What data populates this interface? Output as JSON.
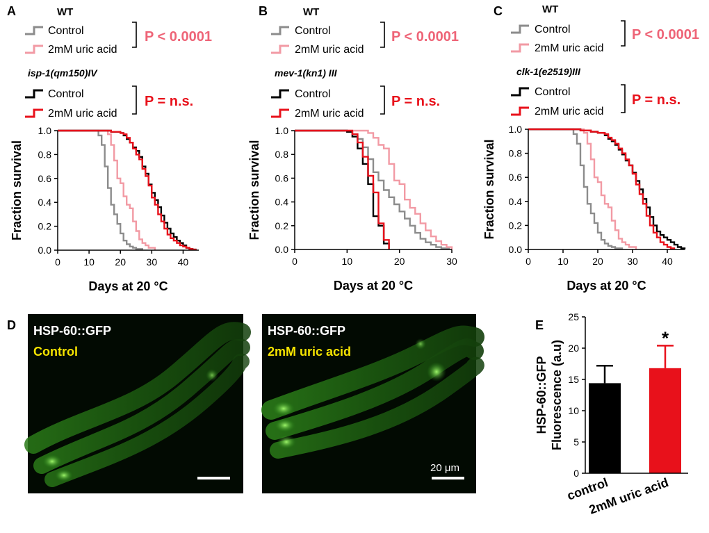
{
  "figure_panels": {
    "A": "A",
    "B": "B",
    "C": "C",
    "D": "D",
    "E": "E"
  },
  "colors": {
    "wt_control": "#8c8c8c",
    "wt_uric": "#f29aa4",
    "mut_control": "#000000",
    "mut_uric": "#e8111b",
    "pval_wt": "#ee6477",
    "pval_mut": "#e8111b",
    "bar_control": "#000000",
    "bar_uric": "#e8111b",
    "micro_label_white": "#ffffff",
    "micro_label_yellow": "#f5e300"
  },
  "chart_data": [
    {
      "id": "A",
      "type": "line",
      "wt_title": "WT",
      "strain": "isp-1(qm150)IV",
      "legend_wt": [
        "Control",
        "2mM uric acid"
      ],
      "legend_mut": [
        "Control",
        "2mM uric acid"
      ],
      "p_wt": "P < 0.0001",
      "p_mut": "P = n.s.",
      "xlabel": "Days at 20 °C",
      "ylabel": "Fraction survival",
      "xlim": [
        0,
        45
      ],
      "ylim": [
        0,
        1.0
      ],
      "xticks": [
        "0",
        "10",
        "20",
        "30",
        "40"
      ],
      "xtick_values": [
        0,
        10,
        20,
        30,
        40
      ],
      "yticks": [
        "0.0",
        "0.2",
        "0.4",
        "0.6",
        "0.8",
        "1.0"
      ],
      "ytick_values": [
        0,
        0.2,
        0.4,
        0.6,
        0.8,
        1.0
      ],
      "series": [
        {
          "name": "WT Control",
          "color": "#8c8c8c",
          "x": [
            0,
            13,
            14,
            15,
            16,
            17,
            18,
            19,
            20,
            21,
            22,
            23,
            24,
            25,
            27
          ],
          "y": [
            1.0,
            0.96,
            0.88,
            0.7,
            0.52,
            0.38,
            0.3,
            0.22,
            0.14,
            0.08,
            0.05,
            0.03,
            0.02,
            0.01,
            0.0
          ]
        },
        {
          "name": "WT 2mM uric acid",
          "color": "#f29aa4",
          "x": [
            0,
            16,
            17,
            18,
            19,
            20,
            21,
            22,
            23,
            24,
            25,
            26,
            27,
            28,
            29,
            31
          ],
          "y": [
            1.0,
            0.97,
            0.88,
            0.75,
            0.6,
            0.56,
            0.45,
            0.38,
            0.35,
            0.24,
            0.16,
            0.09,
            0.06,
            0.04,
            0.02,
            0.0
          ]
        },
        {
          "name": "isp-1 Control",
          "color": "#000000",
          "x": [
            0,
            17,
            20,
            21,
            22,
            23,
            24,
            25,
            26,
            27,
            28,
            29,
            30,
            31,
            32,
            33,
            34,
            35,
            36,
            37,
            38,
            39,
            40,
            41,
            42,
            43,
            44
          ],
          "y": [
            1.0,
            0.99,
            0.98,
            0.96,
            0.93,
            0.9,
            0.86,
            0.83,
            0.78,
            0.7,
            0.64,
            0.55,
            0.48,
            0.42,
            0.36,
            0.29,
            0.23,
            0.18,
            0.14,
            0.11,
            0.08,
            0.06,
            0.04,
            0.02,
            0.01,
            0.005,
            0.0
          ]
        },
        {
          "name": "isp-1 2mM uric acid",
          "color": "#e8111b",
          "x": [
            0,
            17,
            20,
            21,
            22,
            23,
            24,
            25,
            26,
            27,
            28,
            29,
            30,
            31,
            32,
            33,
            34,
            35,
            36,
            37,
            38,
            39,
            40,
            41,
            42,
            43,
            44
          ],
          "y": [
            1.0,
            0.99,
            0.98,
            0.97,
            0.94,
            0.9,
            0.85,
            0.8,
            0.76,
            0.68,
            0.62,
            0.54,
            0.44,
            0.38,
            0.3,
            0.24,
            0.18,
            0.13,
            0.1,
            0.08,
            0.06,
            0.04,
            0.03,
            0.02,
            0.01,
            0.005,
            0.0
          ]
        }
      ]
    },
    {
      "id": "B",
      "type": "line",
      "wt_title": "WT",
      "strain": "mev-1(kn1) III",
      "legend_wt": [
        "Control",
        "2mM uric acid"
      ],
      "legend_mut": [
        "Control",
        "2mM uric acid"
      ],
      "p_wt": "P < 0.0001",
      "p_mut": "P = n.s.",
      "xlabel": "Days at 20 °C",
      "ylabel": "Fraction survival",
      "xlim": [
        0,
        30
      ],
      "ylim": [
        0,
        1.0
      ],
      "xticks": [
        "0",
        "10",
        "20",
        "30"
      ],
      "xtick_values": [
        0,
        10,
        20,
        30
      ],
      "yticks": [
        "0.0",
        "0.2",
        "0.4",
        "0.6",
        "0.8",
        "1.0"
      ],
      "ytick_values": [
        0,
        0.2,
        0.4,
        0.6,
        0.8,
        1.0
      ],
      "series": [
        {
          "name": "WT Control",
          "color": "#8c8c8c",
          "x": [
            0,
            10,
            11,
            12,
            13,
            14,
            15,
            16,
            17,
            18,
            19,
            20,
            21,
            22,
            23,
            24,
            25,
            26,
            27,
            28,
            29.5
          ],
          "y": [
            1.0,
            0.99,
            0.97,
            0.93,
            0.86,
            0.76,
            0.65,
            0.58,
            0.5,
            0.44,
            0.38,
            0.32,
            0.26,
            0.2,
            0.14,
            0.09,
            0.06,
            0.04,
            0.02,
            0.01,
            0.0
          ]
        },
        {
          "name": "WT 2mM uric acid",
          "color": "#f29aa4",
          "x": [
            0,
            14,
            15,
            16,
            17,
            18,
            19,
            20,
            21,
            22,
            23,
            24,
            25,
            26,
            27,
            28,
            29,
            30
          ],
          "y": [
            1.0,
            0.98,
            0.94,
            0.88,
            0.85,
            0.72,
            0.58,
            0.55,
            0.42,
            0.35,
            0.3,
            0.22,
            0.16,
            0.11,
            0.07,
            0.04,
            0.02,
            0.0
          ]
        },
        {
          "name": "mev-1 Control",
          "color": "#000000",
          "x": [
            0,
            10,
            11,
            12,
            13,
            14,
            15,
            16,
            17,
            18
          ],
          "y": [
            1.0,
            0.99,
            0.95,
            0.85,
            0.72,
            0.55,
            0.28,
            0.2,
            0.05,
            0.0
          ]
        },
        {
          "name": "mev-1 2mM uric acid",
          "color": "#e8111b",
          "x": [
            0,
            11,
            12,
            13,
            14,
            15,
            16,
            17,
            18
          ],
          "y": [
            1.0,
            0.97,
            0.9,
            0.78,
            0.62,
            0.48,
            0.22,
            0.08,
            0.0
          ]
        }
      ]
    },
    {
      "id": "C",
      "type": "line",
      "wt_title": "WT",
      "strain": "clk-1(e2519)III",
      "legend_wt": [
        "Control",
        "2mM uric acid"
      ],
      "legend_mut": [
        "Control",
        "2mM uric acid"
      ],
      "p_wt": "P < 0.0001",
      "p_mut": "P = n.s.",
      "xlabel": "Days at 20 °C",
      "ylabel": "Fraction survival",
      "xlim": [
        0,
        45
      ],
      "ylim": [
        0,
        1.0
      ],
      "xticks": [
        "0",
        "10",
        "20",
        "30",
        "40"
      ],
      "xtick_values": [
        0,
        10,
        20,
        30,
        40
      ],
      "yticks": [
        "0.0",
        "0.2",
        "0.4",
        "0.6",
        "0.8",
        "1.0"
      ],
      "ytick_values": [
        0,
        0.2,
        0.4,
        0.6,
        0.8,
        1.0
      ],
      "series": [
        {
          "name": "WT Control",
          "color": "#8c8c8c",
          "x": [
            0,
            13,
            14,
            15,
            16,
            17,
            18,
            19,
            20,
            21,
            22,
            23,
            24,
            25,
            27
          ],
          "y": [
            1.0,
            0.96,
            0.88,
            0.7,
            0.52,
            0.38,
            0.3,
            0.22,
            0.14,
            0.08,
            0.05,
            0.03,
            0.02,
            0.01,
            0.0
          ]
        },
        {
          "name": "WT 2mM uric acid",
          "color": "#f29aa4",
          "x": [
            0,
            16,
            17,
            18,
            19,
            20,
            21,
            22,
            23,
            24,
            25,
            26,
            27,
            28,
            29,
            31
          ],
          "y": [
            1.0,
            0.97,
            0.88,
            0.75,
            0.6,
            0.56,
            0.45,
            0.38,
            0.35,
            0.24,
            0.16,
            0.09,
            0.06,
            0.04,
            0.02,
            0.0
          ]
        },
        {
          "name": "clk-1 Control",
          "color": "#000000",
          "x": [
            0,
            15,
            18,
            20,
            22,
            23,
            24,
            25,
            26,
            27,
            28,
            29,
            30,
            31,
            32,
            33,
            34,
            35,
            36,
            37,
            38,
            39,
            40,
            41,
            42,
            43,
            44,
            45
          ],
          "y": [
            1.0,
            0.99,
            0.98,
            0.97,
            0.95,
            0.92,
            0.9,
            0.87,
            0.83,
            0.79,
            0.74,
            0.7,
            0.64,
            0.57,
            0.5,
            0.42,
            0.35,
            0.27,
            0.2,
            0.15,
            0.12,
            0.1,
            0.08,
            0.06,
            0.04,
            0.02,
            0.01,
            0.0
          ]
        },
        {
          "name": "clk-1 2mM uric acid",
          "color": "#e8111b",
          "x": [
            0,
            15,
            18,
            20,
            22,
            23,
            24,
            25,
            26,
            27,
            28,
            29,
            30,
            31,
            32,
            33,
            34,
            35,
            36,
            37,
            38,
            39,
            40,
            41,
            42
          ],
          "y": [
            1.0,
            0.99,
            0.98,
            0.97,
            0.96,
            0.93,
            0.91,
            0.88,
            0.84,
            0.8,
            0.75,
            0.7,
            0.63,
            0.54,
            0.46,
            0.38,
            0.28,
            0.2,
            0.14,
            0.1,
            0.06,
            0.04,
            0.02,
            0.01,
            0.0
          ]
        }
      ]
    },
    {
      "id": "E",
      "type": "bar",
      "categories": [
        "control",
        "2mM uric acid"
      ],
      "values": [
        14.4,
        16.8
      ],
      "errors": [
        2.8,
        3.6
      ],
      "bar_colors": [
        "#000000",
        "#e8111b"
      ],
      "significance": [
        "",
        "*"
      ],
      "ylabel": "HSP-60::GFP\nFluorescence (a.u)",
      "ylabel_lines": [
        "HSP-60::GFP",
        "Fluorescence (a.u)"
      ],
      "ylim": [
        0,
        25
      ],
      "yticks": [
        "0",
        "5",
        "10",
        "15",
        "20",
        "25"
      ],
      "ytick_values": [
        0,
        5,
        10,
        15,
        20,
        25
      ]
    }
  ],
  "micrographs": [
    {
      "title": "HSP-60::GFP",
      "condition": "Control",
      "scale_text": ""
    },
    {
      "title": "HSP-60::GFP",
      "condition": "2mM uric acid",
      "scale_text": "20 μm"
    }
  ]
}
